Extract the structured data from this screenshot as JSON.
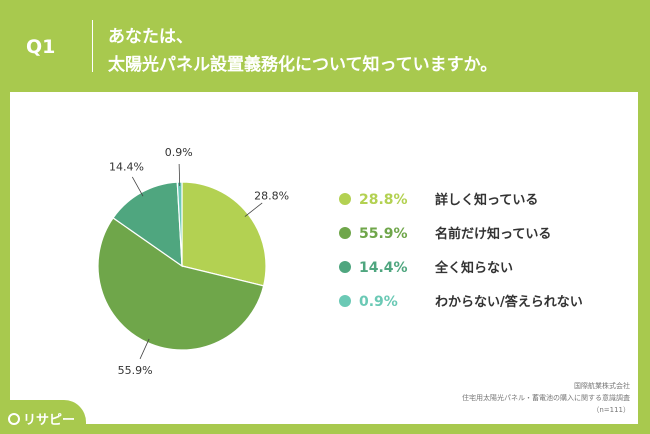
{
  "header": {
    "question": "Q1",
    "title_line1": "あなたは、",
    "title_line2": "太陽光パネル設置義務化について知っていますか。"
  },
  "chart_data": {
    "type": "pie",
    "title": "",
    "categories": [
      "詳しく知っている",
      "名前だけ知っている",
      "全く知らない",
      "わからない/答えられない"
    ],
    "values": [
      28.8,
      55.9,
      14.4,
      0.9
    ],
    "value_labels": [
      "28.8%",
      "55.9%",
      "14.4%",
      "0.9%"
    ],
    "colors": [
      "#b3d152",
      "#6fa64a",
      "#4fa67f",
      "#6bc9b5"
    ],
    "start_angle": "12 o'clock",
    "direction": "clockwise",
    "legend_position": "right"
  },
  "footer": {
    "line1": "国際航業株式会社",
    "line2": "住宅用太陽光パネル・蓄電池の購入に関する意識調査",
    "line3": "（n=111）"
  },
  "brand": {
    "logo_text": "リサピー"
  }
}
